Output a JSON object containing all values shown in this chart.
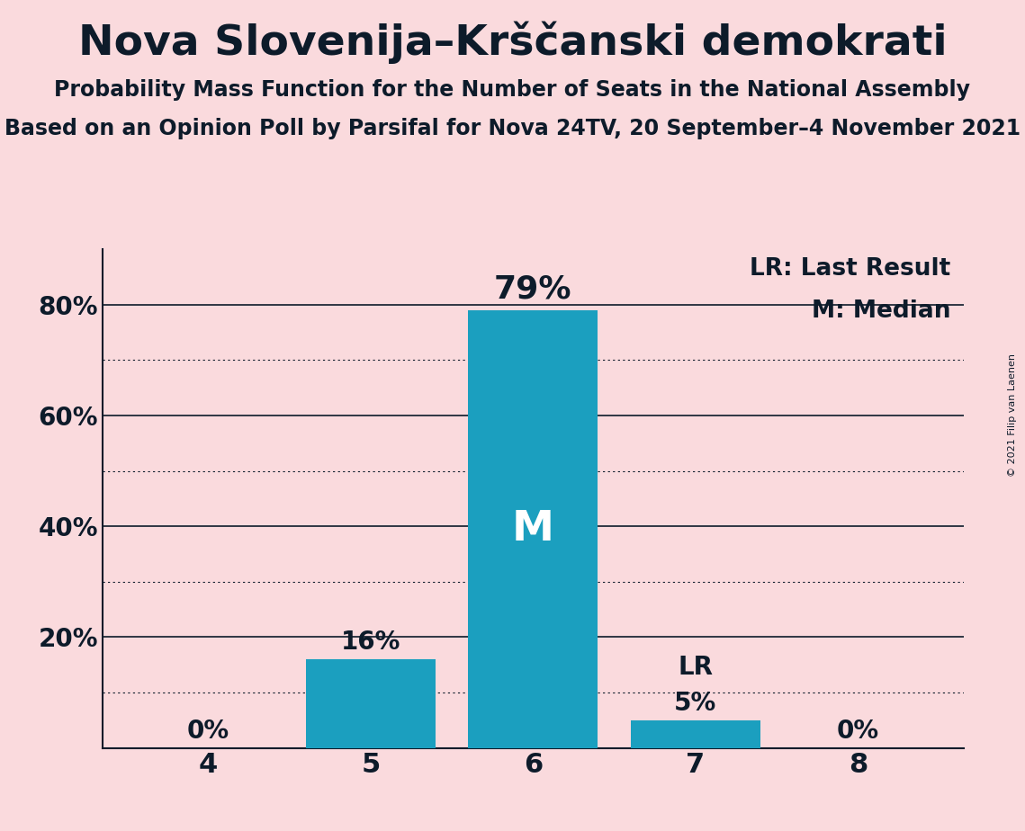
{
  "title": "Nova Slovenija–Krščanski demokrati",
  "subtitle1": "Probability Mass Function for the Number of Seats in the National Assembly",
  "subtitle2": "Based on an Opinion Poll by Parsifal for Nova 24TV, 20 September–4 November 2021",
  "copyright": "© 2021 Filip van Laenen",
  "categories": [
    4,
    5,
    6,
    7,
    8
  ],
  "values": [
    0,
    16,
    79,
    5,
    0
  ],
  "bar_color": "#1b9fbf",
  "background_color": "#fadadd",
  "text_color": "#0d1b2a",
  "median_seat": 6,
  "last_result_seat": 7,
  "legend_lr": "LR: Last Result",
  "legend_m": "M: Median",
  "ylabel_ticks": [
    20,
    40,
    60,
    80
  ],
  "ylim": [
    0,
    90
  ],
  "dotted_grid_values": [
    10,
    30,
    50,
    70
  ],
  "solid_grid_values": [
    20,
    40,
    60,
    80
  ]
}
